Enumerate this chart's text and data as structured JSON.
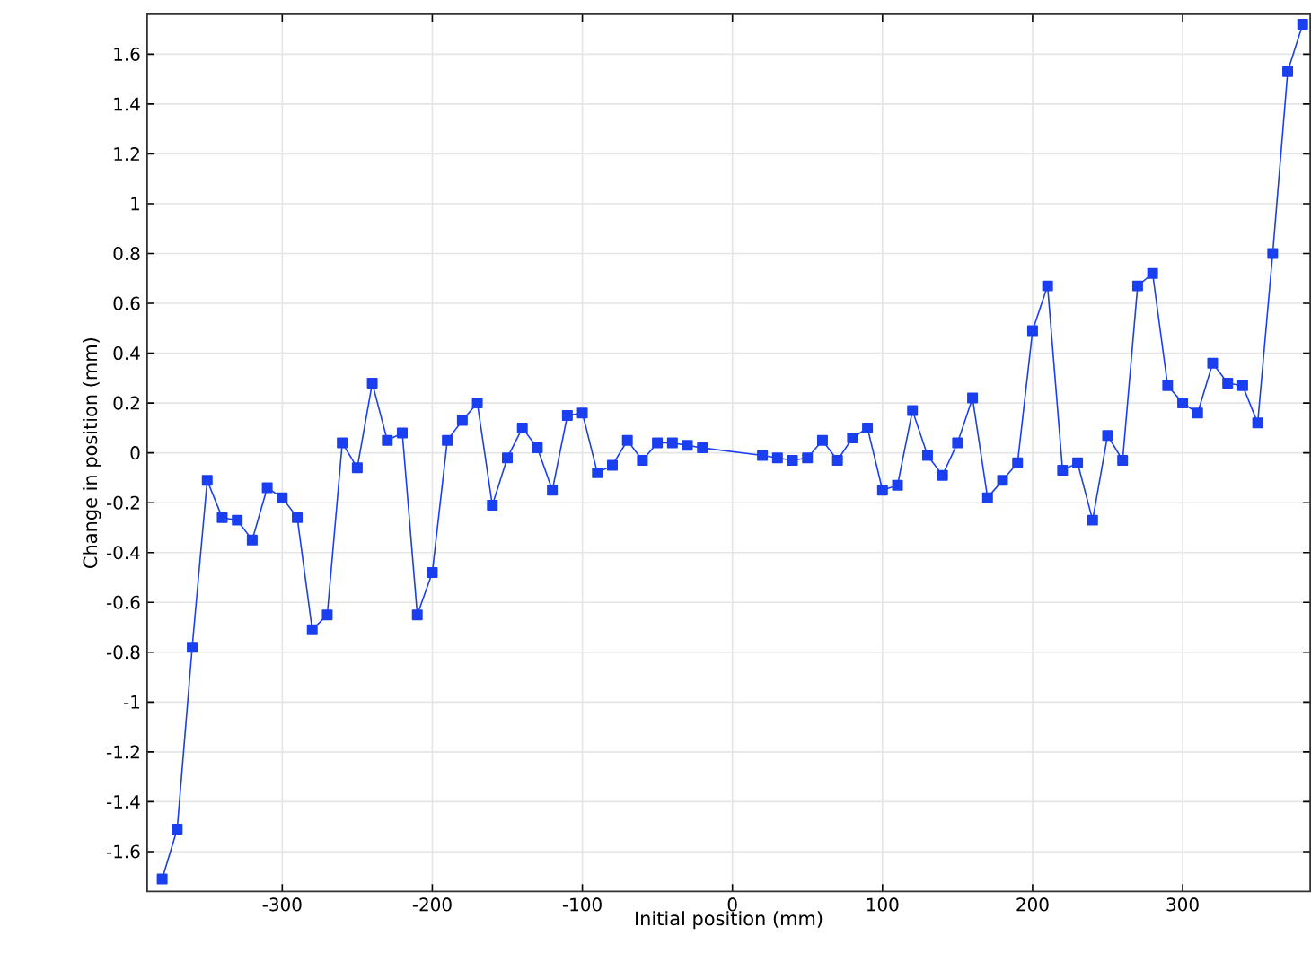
{
  "chart_data": {
    "type": "line",
    "xlabel": "Initial position (mm)",
    "ylabel": "Change in position (mm)",
    "x": [
      -380,
      -370,
      -360,
      -350,
      -340,
      -330,
      -320,
      -310,
      -300,
      -290,
      -280,
      -270,
      -260,
      -250,
      -240,
      -230,
      -220,
      -210,
      -200,
      -190,
      -180,
      -170,
      -160,
      -150,
      -140,
      -130,
      -120,
      -110,
      -100,
      -90,
      -80,
      -70,
      -60,
      -50,
      -40,
      -30,
      -20,
      20,
      30,
      40,
      50,
      60,
      70,
      80,
      90,
      100,
      110,
      120,
      130,
      140,
      150,
      160,
      170,
      180,
      190,
      200,
      210,
      220,
      230,
      240,
      250,
      260,
      270,
      280,
      290,
      300,
      310,
      320,
      330,
      340,
      350,
      360,
      370,
      380
    ],
    "series": [
      {
        "color": "#1a3ff0",
        "values": [
          -1.71,
          -1.51,
          -0.78,
          -0.11,
          -0.26,
          -0.27,
          -0.35,
          -0.14,
          -0.18,
          -0.26,
          -0.71,
          -0.65,
          0.04,
          -0.06,
          0.28,
          0.05,
          0.08,
          -0.65,
          -0.48,
          0.05,
          0.13,
          0.2,
          -0.21,
          -0.02,
          0.1,
          0.02,
          -0.15,
          0.15,
          0.16,
          -0.08,
          -0.05,
          0.05,
          -0.03,
          0.04,
          0.04,
          0.03,
          0.02,
          -0.01,
          -0.02,
          -0.03,
          -0.02,
          0.05,
          -0.03,
          0.06,
          0.1,
          -0.15,
          -0.13,
          0.17,
          -0.01,
          -0.09,
          0.04,
          0.22,
          -0.18,
          -0.11,
          -0.04,
          0.49,
          0.67,
          -0.07,
          -0.04,
          -0.27,
          0.07,
          -0.03,
          0.67,
          0.72,
          0.27,
          0.2,
          0.16,
          0.36,
          0.28,
          0.27,
          0.12,
          0.8,
          1.53,
          1.72
        ]
      }
    ],
    "xlim": [
      -390,
      385
    ],
    "ylim": [
      -1.76,
      1.76
    ],
    "xticks": [
      -300,
      -200,
      -100,
      0,
      100,
      200,
      300
    ],
    "yticks": [
      -1.6,
      -1.4,
      -1.2,
      -1,
      -0.8,
      -0.6,
      -0.4,
      -0.2,
      0,
      0.2,
      0.4,
      0.6,
      0.8,
      1,
      1.2,
      1.4,
      1.6
    ],
    "grid": true,
    "marker": "square",
    "line_style": "solid"
  }
}
